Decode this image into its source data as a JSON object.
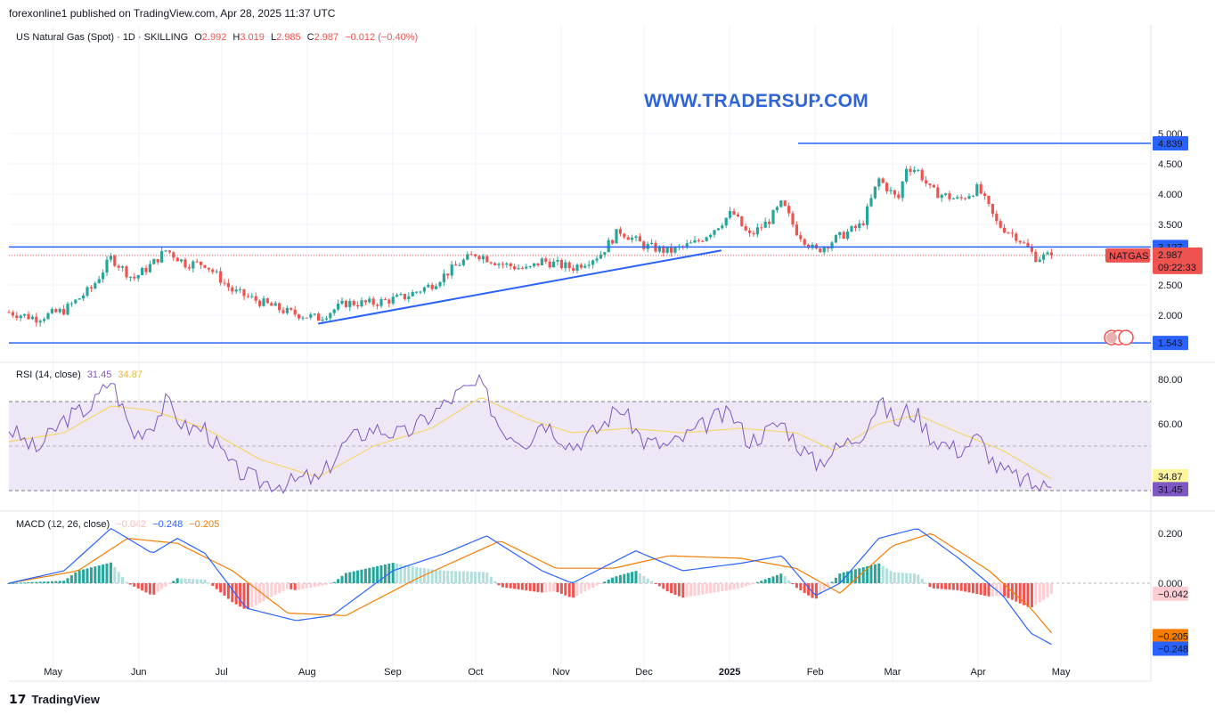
{
  "header": "forexonline1 published on TradingView.com, Apr 28, 2025 11:37 UTC",
  "watermark": "WWW.TRADERSUP.COM",
  "footer": {
    "logo_text": "TradingView"
  },
  "price_legend": {
    "symbol": "US Natural Gas (Spot) · 1D · SKILLING",
    "o_label": "O",
    "o": "2.992",
    "h_label": "H",
    "h": "3.019",
    "l_label": "L",
    "l": "2.985",
    "c_label": "C",
    "c": "2.987",
    "change": "−0.012 (−0.40%)"
  },
  "rsi_legend": {
    "label": "RSI (14, close)",
    "rsi": "31.45",
    "ma": "34.87"
  },
  "macd_legend": {
    "label": "MACD (12, 26, close)",
    "hist": "−0.042",
    "macd": "−0.248",
    "signal": "−0.205"
  },
  "colors": {
    "up": "#26a69a",
    "down": "#ef5350",
    "blue": "#2962ff",
    "rsi": "#7e57c2",
    "rsi_ma": "#f5d76e",
    "macd": "#2962ff",
    "signal": "#f57c00",
    "rsi_band": "#ede7f6"
  },
  "chart_data": [
    {
      "type": "candlestick",
      "title": "US Natural Gas (Spot) · 1D · SKILLING",
      "x_ticks": [
        "May",
        "Jun",
        "Jul",
        "Aug",
        "Sep",
        "Oct",
        "Nov",
        "Dec",
        "2025",
        "Feb",
        "Mar",
        "Apr",
        "May"
      ],
      "y_ticks": [
        "2.000",
        "2.500",
        "3.000",
        "3.500",
        "4.000",
        "4.500",
        "5.000"
      ],
      "ylim": [
        1.55,
        5.08
      ],
      "close_path": [
        {
          "date": "2024-04-15",
          "close": 2.05
        },
        {
          "date": "2024-04-25",
          "close": 1.95
        },
        {
          "date": "2024-05-05",
          "close": 2.08
        },
        {
          "date": "2024-05-15",
          "close": 2.45
        },
        {
          "date": "2024-05-22",
          "close": 2.95
        },
        {
          "date": "2024-05-30",
          "close": 2.6
        },
        {
          "date": "2024-06-06",
          "close": 2.85
        },
        {
          "date": "2024-06-11",
          "close": 3.08
        },
        {
          "date": "2024-06-18",
          "close": 2.85
        },
        {
          "date": "2024-06-25",
          "close": 2.85
        },
        {
          "date": "2024-07-05",
          "close": 2.4
        },
        {
          "date": "2024-07-15",
          "close": 2.22
        },
        {
          "date": "2024-07-25",
          "close": 2.05
        },
        {
          "date": "2024-08-05",
          "close": 1.95
        },
        {
          "date": "2024-08-15",
          "close": 2.2
        },
        {
          "date": "2024-08-25",
          "close": 2.2
        },
        {
          "date": "2024-09-05",
          "close": 2.3
        },
        {
          "date": "2024-09-15",
          "close": 2.5
        },
        {
          "date": "2024-09-25",
          "close": 2.85
        },
        {
          "date": "2024-10-01",
          "close": 3.02
        },
        {
          "date": "2024-10-10",
          "close": 2.85
        },
        {
          "date": "2024-10-20",
          "close": 2.75
        },
        {
          "date": "2024-10-25",
          "close": 2.9
        },
        {
          "date": "2024-11-05",
          "close": 2.78
        },
        {
          "date": "2024-11-15",
          "close": 3.0
        },
        {
          "date": "2024-11-22",
          "close": 3.4
        },
        {
          "date": "2024-12-01",
          "close": 3.15
        },
        {
          "date": "2024-12-10",
          "close": 3.05
        },
        {
          "date": "2024-12-20",
          "close": 3.2
        },
        {
          "date": "2024-12-27",
          "close": 3.45
        },
        {
          "date": "2025-01-02",
          "close": 3.7
        },
        {
          "date": "2025-01-08",
          "close": 3.3
        },
        {
          "date": "2025-01-15",
          "close": 3.55
        },
        {
          "date": "2025-01-20",
          "close": 3.85
        },
        {
          "date": "2025-01-25",
          "close": 3.4
        },
        {
          "date": "2025-02-01",
          "close": 3.05
        },
        {
          "date": "2025-02-08",
          "close": 3.25
        },
        {
          "date": "2025-02-18",
          "close": 3.5
        },
        {
          "date": "2025-02-24",
          "close": 4.25
        },
        {
          "date": "2025-03-03",
          "close": 3.9
        },
        {
          "date": "2025-03-06",
          "close": 4.45
        },
        {
          "date": "2025-03-10",
          "close": 4.4
        },
        {
          "date": "2025-03-15",
          "close": 4.05
        },
        {
          "date": "2025-03-25",
          "close": 3.9
        },
        {
          "date": "2025-04-01",
          "close": 4.1
        },
        {
          "date": "2025-04-08",
          "close": 3.5
        },
        {
          "date": "2025-04-15",
          "close": 3.3
        },
        {
          "date": "2025-04-22",
          "close": 2.95
        },
        {
          "date": "2025-04-28",
          "close": 2.987
        }
      ],
      "levels": [
        {
          "name": "resistance",
          "value": 4.839,
          "label": "4.839"
        },
        {
          "name": "support",
          "value": 3.127,
          "label": "3.127"
        },
        {
          "name": "low",
          "value": 1.543,
          "label": "1.543"
        }
      ],
      "trendline": {
        "start": {
          "date": "2024-08-05",
          "value": 1.86
        },
        "end": {
          "date": "2024-12-29",
          "value": 3.07
        }
      },
      "last_price": {
        "value": 2.987,
        "label": "2.987",
        "symbol_tag": "NATGAS",
        "countdown": "09:22:33"
      }
    },
    {
      "type": "line",
      "title": "RSI (14, close)",
      "y_ticks": [
        "60.00",
        "80.00"
      ],
      "ylim": [
        29,
        83
      ],
      "band": [
        30,
        70
      ],
      "mid": 50,
      "rsi_path": [
        {
          "date": "2024-04-15",
          "value": 58
        },
        {
          "date": "2024-04-25",
          "value": 48
        },
        {
          "date": "2024-05-05",
          "value": 62
        },
        {
          "date": "2024-05-15",
          "value": 68
        },
        {
          "date": "2024-05-22",
          "value": 80
        },
        {
          "date": "2024-05-30",
          "value": 55
        },
        {
          "date": "2024-06-06",
          "value": 60
        },
        {
          "date": "2024-06-11",
          "value": 70
        },
        {
          "date": "2024-06-18",
          "value": 58
        },
        {
          "date": "2024-06-25",
          "value": 58
        },
        {
          "date": "2024-07-05",
          "value": 40
        },
        {
          "date": "2024-07-15",
          "value": 34
        },
        {
          "date": "2024-07-25",
          "value": 33
        },
        {
          "date": "2024-08-01",
          "value": 36
        },
        {
          "date": "2024-08-05",
          "value": 34
        },
        {
          "date": "2024-08-15",
          "value": 52
        },
        {
          "date": "2024-08-25",
          "value": 58
        },
        {
          "date": "2024-09-05",
          "value": 55
        },
        {
          "date": "2024-09-15",
          "value": 64
        },
        {
          "date": "2024-09-25",
          "value": 74
        },
        {
          "date": "2024-10-03",
          "value": 78
        },
        {
          "date": "2024-10-10",
          "value": 58
        },
        {
          "date": "2024-10-20",
          "value": 52
        },
        {
          "date": "2024-10-25",
          "value": 62
        },
        {
          "date": "2024-11-05",
          "value": 50
        },
        {
          "date": "2024-11-15",
          "value": 58
        },
        {
          "date": "2024-11-22",
          "value": 68
        },
        {
          "date": "2024-12-01",
          "value": 52
        },
        {
          "date": "2024-12-10",
          "value": 50
        },
        {
          "date": "2024-12-20",
          "value": 57
        },
        {
          "date": "2024-12-27",
          "value": 63
        },
        {
          "date": "2025-01-02",
          "value": 64
        },
        {
          "date": "2025-01-08",
          "value": 52
        },
        {
          "date": "2025-01-15",
          "value": 57
        },
        {
          "date": "2025-01-20",
          "value": 61
        },
        {
          "date": "2025-01-25",
          "value": 52
        },
        {
          "date": "2025-02-01",
          "value": 42
        },
        {
          "date": "2025-02-08",
          "value": 48
        },
        {
          "date": "2025-02-18",
          "value": 56
        },
        {
          "date": "2025-02-24",
          "value": 70
        },
        {
          "date": "2025-03-03",
          "value": 60
        },
        {
          "date": "2025-03-06",
          "value": 66
        },
        {
          "date": "2025-03-10",
          "value": 64
        },
        {
          "date": "2025-03-15",
          "value": 54
        },
        {
          "date": "2025-03-25",
          "value": 48
        },
        {
          "date": "2025-04-01",
          "value": 54
        },
        {
          "date": "2025-04-08",
          "value": 40
        },
        {
          "date": "2025-04-15",
          "value": 36
        },
        {
          "date": "2025-04-22",
          "value": 32
        },
        {
          "date": "2025-04-28",
          "value": 31.45
        }
      ],
      "ma_path": [
        {
          "date": "2024-04-15",
          "value": 52
        },
        {
          "date": "2024-05-05",
          "value": 56
        },
        {
          "date": "2024-05-22",
          "value": 68
        },
        {
          "date": "2024-06-06",
          "value": 66
        },
        {
          "date": "2024-06-25",
          "value": 58
        },
        {
          "date": "2024-07-15",
          "value": 44
        },
        {
          "date": "2024-08-05",
          "value": 36
        },
        {
          "date": "2024-08-25",
          "value": 50
        },
        {
          "date": "2024-09-15",
          "value": 58
        },
        {
          "date": "2024-10-03",
          "value": 72
        },
        {
          "date": "2024-10-20",
          "value": 62
        },
        {
          "date": "2024-11-05",
          "value": 56
        },
        {
          "date": "2024-11-25",
          "value": 58
        },
        {
          "date": "2024-12-15",
          "value": 56
        },
        {
          "date": "2025-01-05",
          "value": 58
        },
        {
          "date": "2025-01-25",
          "value": 56
        },
        {
          "date": "2025-02-08",
          "value": 48
        },
        {
          "date": "2025-02-24",
          "value": 60
        },
        {
          "date": "2025-03-10",
          "value": 64
        },
        {
          "date": "2025-03-25",
          "value": 56
        },
        {
          "date": "2025-04-10",
          "value": 48
        },
        {
          "date": "2025-04-28",
          "value": 34.87
        }
      ],
      "last_labels": [
        "34.87",
        "31.45"
      ]
    },
    {
      "type": "line",
      "title": "MACD (12, 26, close)",
      "y_ticks": [
        "0.000",
        "0.200"
      ],
      "ylim": [
        -0.28,
        0.25
      ],
      "macd_path": [
        {
          "date": "2024-04-15",
          "value": 0.0
        },
        {
          "date": "2024-05-05",
          "value": 0.05
        },
        {
          "date": "2024-05-22",
          "value": 0.22
        },
        {
          "date": "2024-06-06",
          "value": 0.12
        },
        {
          "date": "2024-06-15",
          "value": 0.18
        },
        {
          "date": "2024-06-25",
          "value": 0.12
        },
        {
          "date": "2024-07-10",
          "value": -0.1
        },
        {
          "date": "2024-07-28",
          "value": -0.15
        },
        {
          "date": "2024-08-10",
          "value": -0.13
        },
        {
          "date": "2024-09-01",
          "value": 0.05
        },
        {
          "date": "2024-09-20",
          "value": 0.12
        },
        {
          "date": "2024-10-05",
          "value": 0.19
        },
        {
          "date": "2024-10-25",
          "value": 0.05
        },
        {
          "date": "2024-11-05",
          "value": 0.0
        },
        {
          "date": "2024-11-28",
          "value": 0.13
        },
        {
          "date": "2024-12-15",
          "value": 0.05
        },
        {
          "date": "2025-01-05",
          "value": 0.08
        },
        {
          "date": "2025-01-20",
          "value": 0.11
        },
        {
          "date": "2025-02-01",
          "value": -0.05
        },
        {
          "date": "2025-02-10",
          "value": 0.0
        },
        {
          "date": "2025-02-24",
          "value": 0.18
        },
        {
          "date": "2025-03-10",
          "value": 0.22
        },
        {
          "date": "2025-03-25",
          "value": 0.1
        },
        {
          "date": "2025-04-10",
          "value": -0.05
        },
        {
          "date": "2025-04-20",
          "value": -0.2
        },
        {
          "date": "2025-04-28",
          "value": -0.248
        }
      ],
      "signal_path": [
        {
          "date": "2024-04-15",
          "value": 0.0
        },
        {
          "date": "2024-05-10",
          "value": 0.05
        },
        {
          "date": "2024-05-28",
          "value": 0.18
        },
        {
          "date": "2024-06-15",
          "value": 0.16
        },
        {
          "date": "2024-07-05",
          "value": 0.05
        },
        {
          "date": "2024-07-25",
          "value": -0.12
        },
        {
          "date": "2024-08-15",
          "value": -0.13
        },
        {
          "date": "2024-09-10",
          "value": 0.02
        },
        {
          "date": "2024-10-10",
          "value": 0.17
        },
        {
          "date": "2024-10-30",
          "value": 0.06
        },
        {
          "date": "2024-11-20",
          "value": 0.06
        },
        {
          "date": "2024-12-10",
          "value": 0.11
        },
        {
          "date": "2025-01-05",
          "value": 0.1
        },
        {
          "date": "2025-01-25",
          "value": 0.06
        },
        {
          "date": "2025-02-10",
          "value": -0.04
        },
        {
          "date": "2025-03-01",
          "value": 0.15
        },
        {
          "date": "2025-03-15",
          "value": 0.2
        },
        {
          "date": "2025-04-05",
          "value": 0.05
        },
        {
          "date": "2025-04-20",
          "value": -0.1
        },
        {
          "date": "2025-04-28",
          "value": -0.205
        }
      ],
      "hist_value": -0.042,
      "last_labels": [
        "−0.042",
        "−0.205",
        "−0.248"
      ]
    }
  ]
}
